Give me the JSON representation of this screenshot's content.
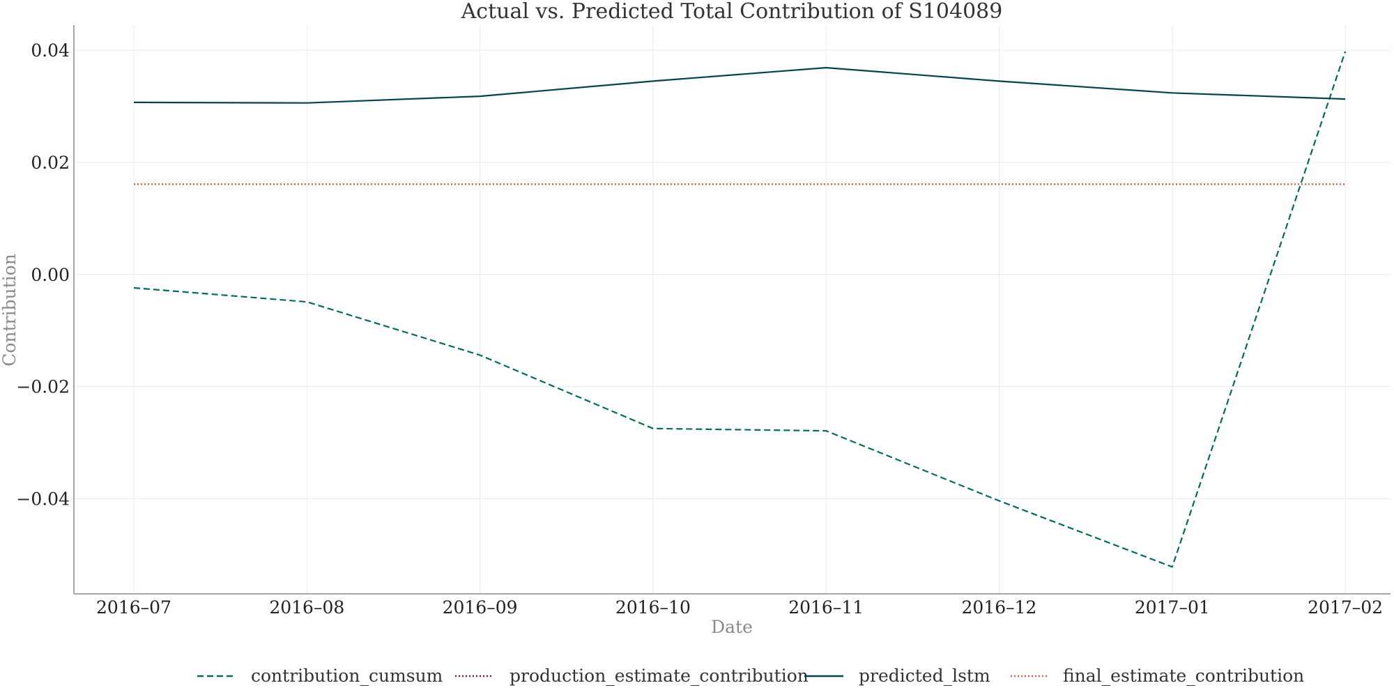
{
  "chart_data": {
    "type": "line",
    "title": "Actual vs. Predicted Total Contribution of S104089",
    "xlabel": "Date",
    "ylabel": "Contribution",
    "categories": [
      "2016–07",
      "2016–08",
      "2016–09",
      "2016–10",
      "2016–11",
      "2016–12",
      "2017–01",
      "2017–02"
    ],
    "ylim": [
      -0.057,
      0.0445
    ],
    "yticks": [
      0.04,
      0.02,
      0.0,
      -0.02,
      -0.04
    ],
    "ytick_labels": [
      "0.04",
      "0.02",
      "0.00",
      "−0.02",
      "−0.04"
    ],
    "grid": true,
    "legend_position": "bottom-center",
    "series": [
      {
        "name": "contribution_cumsum",
        "style": "dashed",
        "color": "#006b63",
        "values": [
          -0.0024,
          -0.0049,
          -0.0144,
          -0.0275,
          -0.0279,
          -0.0404,
          -0.0522,
          0.0398
        ]
      },
      {
        "name": "production_estimate_contribution",
        "style": "dotted",
        "color": "#8b1a1a",
        "values": [
          0.0161,
          0.0161,
          0.0161,
          0.0161,
          0.0161,
          0.0161,
          0.0161,
          0.0161
        ]
      },
      {
        "name": "predicted_lstm",
        "style": "solid",
        "color": "#00444a",
        "values": [
          0.0307,
          0.0306,
          0.0318,
          0.0345,
          0.0369,
          0.0345,
          0.0324,
          0.0313
        ]
      },
      {
        "name": "final_estimate_contribution",
        "style": "dotted",
        "color": "#e0604a",
        "values": [
          0.0161,
          0.0161,
          0.0161,
          0.0161,
          0.0161,
          0.0161,
          0.0161,
          0.0161
        ]
      }
    ]
  }
}
